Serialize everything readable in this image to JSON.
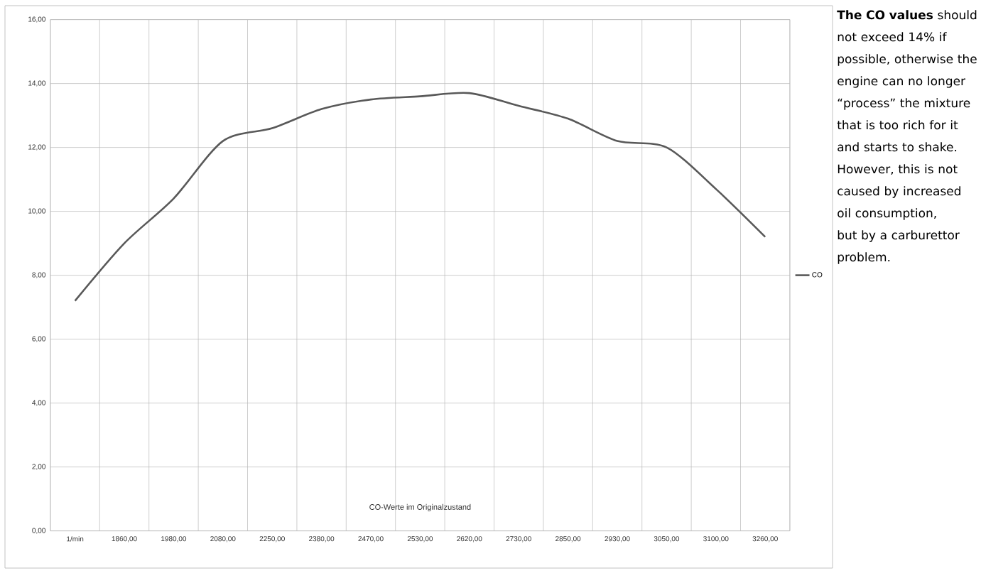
{
  "chart_data": {
    "type": "line",
    "title": "CO-Werte im Originalzustand",
    "categories": [
      "1/min",
      "1860,00",
      "1980,00",
      "2080,00",
      "2250,00",
      "2380,00",
      "2470,00",
      "2530,00",
      "2620,00",
      "2730,00",
      "2850,00",
      "2930,00",
      "3050,00",
      "3100,00",
      "3260,00"
    ],
    "series": [
      {
        "name": "CO",
        "color": "#595959",
        "values": [
          7.2,
          9.0,
          10.4,
          12.2,
          12.6,
          13.2,
          13.5,
          13.6,
          13.7,
          13.3,
          12.9,
          12.2,
          12.0,
          10.7,
          9.2
        ]
      }
    ],
    "ylim": [
      0,
      16
    ],
    "yticks": [
      {
        "value": 0,
        "label": "0,00"
      },
      {
        "value": 2,
        "label": "2,00"
      },
      {
        "value": 4,
        "label": "4,00"
      },
      {
        "value": 6,
        "label": "6,00"
      },
      {
        "value": 8,
        "label": "8,00"
      },
      {
        "value": 10,
        "label": "10,00"
      },
      {
        "value": 12,
        "label": "12,00"
      },
      {
        "value": 14,
        "label": "14,00"
      },
      {
        "value": 16,
        "label": "16,00"
      }
    ],
    "grid": true,
    "legend": "right",
    "marker": "none",
    "line_style": "solid",
    "annotations": [
      "**The CO values** should not exceed 14% if possible, otherwise the engine can no longer “process” the mixture that is too rich for it and starts to shake. However, this is not caused by increased oil consumption, but by a carburettor problem."
    ]
  }
}
